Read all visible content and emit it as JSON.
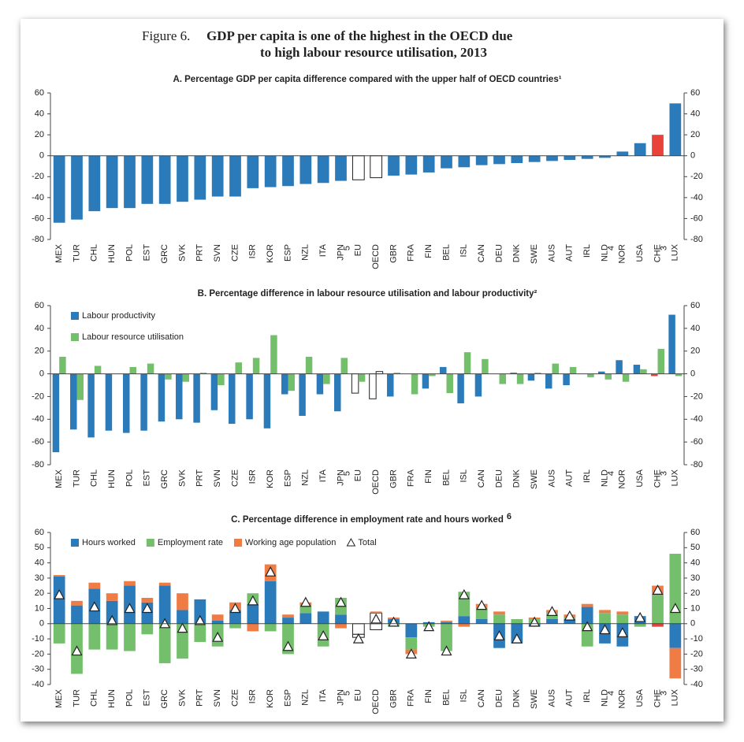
{
  "figure_label": "Figure 6.",
  "title_lines": [
    "GDP per capita is one of the highest in the OECD due",
    "to high labour resource utilisation, 2013"
  ],
  "chart_data": [
    {
      "type": "bar",
      "title": "A. Percentage GDP per capita difference compared with the upper half of OECD countries¹",
      "categories": [
        "MEX",
        "TUR",
        "CHL",
        "HUN",
        "POL",
        "EST",
        "GRC",
        "SVK",
        "PRT",
        "SVN",
        "CZE",
        "ISR",
        "KOR",
        "ESP",
        "NZL",
        "ITA",
        "JPN",
        "EU",
        "OECD",
        "GBR",
        "FRA",
        "FIN",
        "BEL",
        "ISL",
        "CAN",
        "DEU",
        "DNK",
        "SWE",
        "AUS",
        "AUT",
        "IRL",
        "NLD",
        "NOR",
        "USA",
        "CHE",
        "LUX"
      ],
      "footnotes": [
        null,
        null,
        null,
        null,
        null,
        null,
        null,
        null,
        null,
        null,
        null,
        null,
        null,
        null,
        null,
        null,
        "5",
        null,
        null,
        null,
        null,
        null,
        null,
        null,
        null,
        null,
        null,
        null,
        null,
        null,
        null,
        "4",
        null,
        null,
        "3",
        null
      ],
      "values": [
        -64,
        -61,
        -53,
        -50,
        -50,
        -46,
        -46,
        -44,
        -42,
        -39,
        -39,
        -31,
        -30,
        -29,
        -27,
        -26,
        -24,
        -23,
        -21,
        -19,
        -18,
        -16,
        -12,
        -11,
        -9,
        -8,
        -7,
        -6,
        -5,
        -4,
        -3,
        -2,
        4,
        12,
        20,
        50
      ],
      "color": "#2b7bba",
      "color_overrides": {
        "EU": "#ffffff",
        "OECD": "#ffffff",
        "CHE": "#e8423a"
      },
      "ylim": [
        -80,
        60
      ],
      "yticks": [
        -80,
        -60,
        -40,
        -20,
        0,
        20,
        40,
        60
      ],
      "grid": false
    },
    {
      "type": "grouped_bar",
      "title": "B. Percentage difference in labour resource utilisation and labour productivity²",
      "categories": [
        "MEX",
        "TUR",
        "CHL",
        "HUN",
        "POL",
        "EST",
        "GRC",
        "SVK",
        "PRT",
        "SVN",
        "CZE",
        "ISR",
        "KOR",
        "ESP",
        "NZL",
        "ITA",
        "JPN",
        "EU",
        "OECD",
        "GBR",
        "FRA",
        "FIN",
        "BEL",
        "ISL",
        "CAN",
        "DEU",
        "DNK",
        "SWE",
        "AUS",
        "AUT",
        "IRL",
        "NLD",
        "NOR",
        "USA",
        "CHE",
        "LUX"
      ],
      "footnotes": [
        null,
        null,
        null,
        null,
        null,
        null,
        null,
        null,
        null,
        null,
        null,
        null,
        null,
        null,
        null,
        null,
        "5",
        null,
        null,
        null,
        null,
        null,
        null,
        null,
        null,
        null,
        null,
        null,
        null,
        null,
        null,
        "4",
        null,
        null,
        "3",
        null
      ],
      "series": [
        {
          "name": "Labour productivity",
          "color": "#2b7bba",
          "color_overrides": {
            "EU": "#ffffff",
            "OECD": "#ffffff",
            "CHE": "#e8423a"
          },
          "values": [
            -69,
            -49,
            -56,
            -50,
            -52,
            -50,
            -42,
            -40,
            -43,
            -32,
            -44,
            -40,
            -48,
            -18,
            -37,
            -18,
            -33,
            -17,
            -22,
            -20,
            0,
            -13,
            6,
            -26,
            -20,
            0,
            1,
            -6,
            -13,
            -10,
            0,
            2,
            12,
            8,
            -2,
            52
          ]
        },
        {
          "name": "Labour resource utilisation",
          "color": "#74bf6b",
          "color_overrides": {
            "OECD": "#ffffff"
          },
          "values": [
            15,
            -23,
            7,
            0,
            6,
            9,
            -5,
            -7,
            1,
            -10,
            10,
            14,
            34,
            -15,
            15,
            -9,
            14,
            -7,
            2,
            1,
            -18,
            -2,
            -17,
            19,
            13,
            -9,
            -9,
            1,
            9,
            6,
            -3,
            -5,
            -7,
            4,
            22,
            -2
          ]
        }
      ],
      "legend": "upper left",
      "legend_orientation": "vertical",
      "ylim": [
        -80,
        60
      ],
      "yticks": [
        -80,
        -60,
        -40,
        -20,
        0,
        20,
        40,
        60
      ],
      "grid": false
    },
    {
      "type": "stacked_bar",
      "title": "C. Percentage difference in employment rate and hours worked",
      "title_note": "6",
      "categories": [
        "MEX",
        "TUR",
        "CHL",
        "HUN",
        "POL",
        "EST",
        "GRC",
        "SVK",
        "PRT",
        "SVN",
        "CZE",
        "ISR",
        "KOR",
        "ESP",
        "NZL",
        "ITA",
        "JPN",
        "EU",
        "OECD",
        "GBR",
        "FRA",
        "FIN",
        "BEL",
        "ISL",
        "CAN",
        "DEU",
        "DNK",
        "SWE",
        "AUS",
        "AUT",
        "IRL",
        "NLD",
        "NOR",
        "USA",
        "CHE",
        "LUX"
      ],
      "footnotes": [
        null,
        null,
        null,
        null,
        null,
        null,
        null,
        null,
        null,
        null,
        null,
        null,
        null,
        null,
        null,
        null,
        "5",
        null,
        null,
        null,
        null,
        null,
        null,
        null,
        null,
        null,
        null,
        null,
        null,
        null,
        null,
        "4",
        null,
        null,
        "3",
        null
      ],
      "series": [
        {
          "name": "Hours worked",
          "color": "#2b7bba",
          "color_overrides": {
            "EU": "#ffffff",
            "OECD": "#ffffff",
            "CHE": "#e8423a"
          },
          "values": [
            31,
            12,
            23,
            15,
            25,
            14,
            25,
            9,
            16,
            2,
            9,
            13,
            28,
            4,
            7,
            8,
            6,
            -7,
            7,
            3,
            -9,
            1,
            1,
            5,
            3,
            -16,
            -13,
            -2,
            3,
            3,
            11,
            -13,
            -15,
            5,
            -2,
            -16
          ]
        },
        {
          "name": "Employment rate",
          "color": "#74bf6b",
          "color_overrides": {
            "EU": "#ffffff",
            "OECD": "#ffffff"
          },
          "values": [
            -13,
            -33,
            -17,
            -17,
            -18,
            -7,
            -26,
            -23,
            -12,
            -15,
            -3,
            7,
            -5,
            -20,
            5,
            -15,
            11,
            -2,
            -4,
            -2,
            -8,
            -2,
            -18,
            16,
            7,
            6,
            3,
            3,
            4,
            1,
            -15,
            7,
            6,
            -2,
            20,
            46
          ]
        },
        {
          "name": "Working age population",
          "color": "#ef7b45",
          "values": [
            1,
            3,
            4,
            5,
            3,
            3,
            2,
            11,
            0,
            4,
            5,
            -5,
            11,
            2,
            2,
            0,
            -3,
            0,
            1,
            1,
            -3,
            0,
            1,
            -2,
            3,
            2,
            0,
            1,
            2,
            2,
            2,
            2,
            2,
            0,
            5,
            -20
          ]
        },
        {
          "name": "Total",
          "color": "#ffffff",
          "marker": "triangle",
          "values": [
            19,
            -18,
            11,
            2,
            10,
            10,
            0,
            -3,
            2,
            -9,
            10,
            15,
            34,
            -15,
            14,
            -8,
            14,
            -10,
            3,
            1,
            -20,
            -2,
            -18,
            19,
            12,
            -8,
            -10,
            1,
            8,
            5,
            -2,
            -4,
            -6,
            4,
            22,
            10
          ]
        }
      ],
      "legend": "upper left",
      "legend_orientation": "horizontal",
      "ylim": [
        -40,
        60
      ],
      "yticks": [
        -40,
        -30,
        -20,
        -10,
        0,
        10,
        20,
        30,
        40,
        50,
        60
      ],
      "grid": false
    }
  ]
}
